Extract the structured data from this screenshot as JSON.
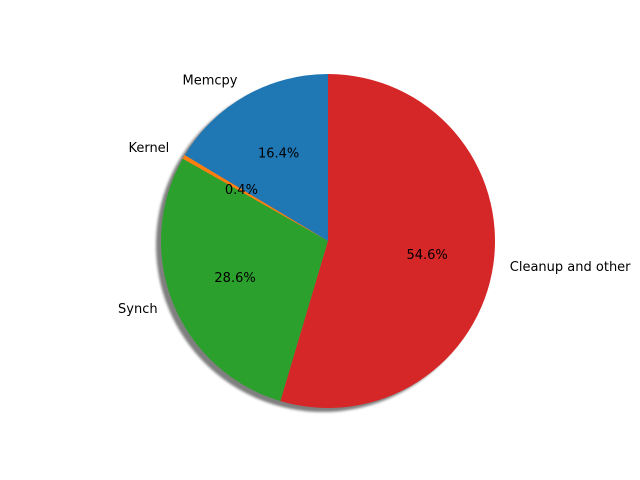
{
  "chart_data": {
    "type": "pie",
    "categories": [
      "Memcpy",
      "Kernel",
      "Synch",
      "Cleanup and other"
    ],
    "values": [
      16.4,
      0.4,
      28.6,
      54.6
    ],
    "value_labels": [
      "16.4%",
      "0.4%",
      "28.6%",
      "54.6%"
    ],
    "colors": [
      "#1f77b4",
      "#ff7f0e",
      "#2ca02c",
      "#d62728"
    ],
    "start_angle_deg": 90,
    "direction": "counterclockwise",
    "shadow": true,
    "legend": "none"
  }
}
